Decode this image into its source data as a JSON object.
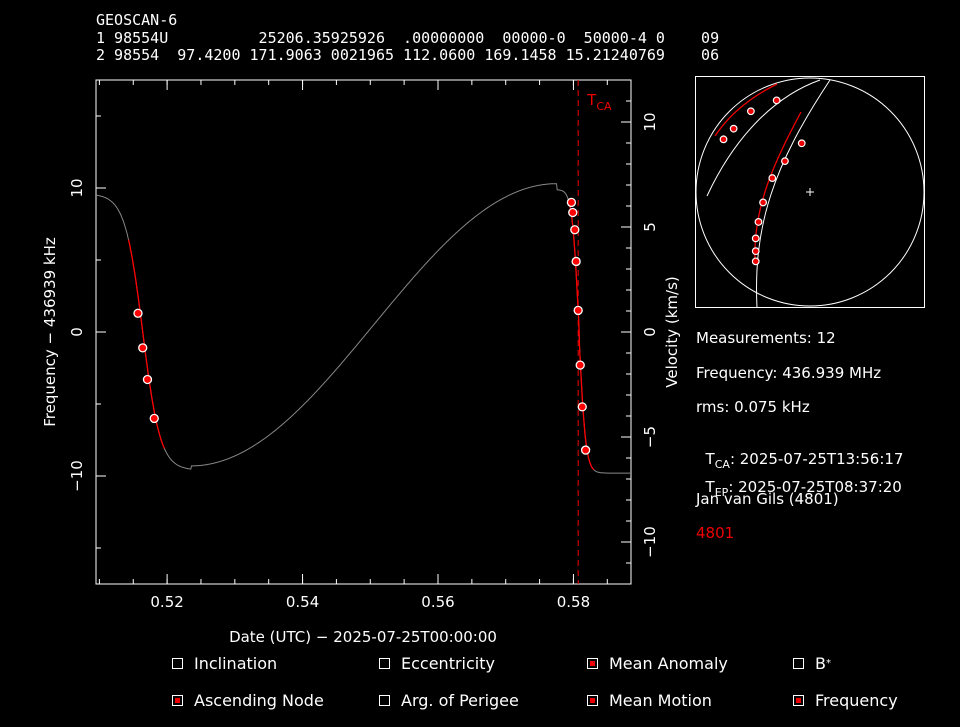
{
  "header": {
    "name": "GEOSCAN-6",
    "line1": "1 98554U          25206.35925926  .00000000  00000-0  50000-4 0    09",
    "line2": "2 98554  97.4200 171.9063 0021965 112.0600 169.1458 15.21240769    06"
  },
  "info": {
    "measurements": "Measurements: 12",
    "frequency": "Frequency: 436.939 MHz",
    "rms": "rms: 0.075 kHz",
    "tca_label": "T",
    "tca_sub": "CA",
    "tca_value": ": 2025-07-25T13:56:17",
    "tep_label": "T",
    "tep_sub": "EP",
    "tep_value": ": 2025-07-25T08:37:20",
    "observer": "Jan van Gils (4801)",
    "station": "4801"
  },
  "checkboxes": [
    {
      "label": "Inclination",
      "checked": false
    },
    {
      "label": "Eccentricity",
      "checked": false
    },
    {
      "label": "Mean Anomaly",
      "checked": true
    },
    {
      "label": "B",
      "sup": "*",
      "checked": false
    },
    {
      "label": "Ascending Node",
      "checked": true
    },
    {
      "label": "Arg. of Perigee",
      "checked": false
    },
    {
      "label": "Mean Motion",
      "checked": true
    },
    {
      "label": "Frequency",
      "checked": true
    }
  ],
  "chart_data": {
    "type": "scatter",
    "xlabel": "Date (UTC) − 2025-07-25T00:00:00",
    "ylabel": "Frequency − 436939 kHz",
    "y2label": "Velocity (km/s)",
    "xlim": [
      0.5095,
      0.5885
    ],
    "ylim": [
      -17.5,
      17.5
    ],
    "y2lim": [
      -12,
      12
    ],
    "xticks": [
      0.52,
      0.54,
      0.56,
      0.58
    ],
    "yticks": [
      -10,
      0,
      10
    ],
    "y2ticks": [
      -10,
      -5,
      0,
      5,
      10
    ],
    "tca_x": 0.5807,
    "tca_marker": "T",
    "tca_marker_sub": "CA",
    "colors": {
      "model": "#888888",
      "fit": "#ff0000",
      "points": "#ff0000"
    },
    "points": [
      {
        "x": 0.5157,
        "y": 1.3
      },
      {
        "x": 0.5164,
        "y": -1.1
      },
      {
        "x": 0.5171,
        "y": -3.3
      },
      {
        "x": 0.5181,
        "y": -6.0
      },
      {
        "x": 0.5797,
        "y": 9.0
      },
      {
        "x": 0.5799,
        "y": 8.3
      },
      {
        "x": 0.5802,
        "y": 7.1
      },
      {
        "x": 0.5804,
        "y": 4.9
      },
      {
        "x": 0.5807,
        "y": 1.5
      },
      {
        "x": 0.581,
        "y": -2.3
      },
      {
        "x": 0.5813,
        "y": -5.2
      },
      {
        "x": 0.5818,
        "y": -8.2
      }
    ],
    "skyplot": {
      "yticks": [
        10,
        5,
        0,
        -5,
        -10
      ],
      "points": [
        {
          "x": 0.124,
          "y": 0.727
        },
        {
          "x": 0.168,
          "y": 0.773
        },
        {
          "x": 0.243,
          "y": 0.848
        },
        {
          "x": 0.355,
          "y": 0.895
        },
        {
          "x": 0.464,
          "y": 0.71
        },
        {
          "x": 0.391,
          "y": 0.633
        },
        {
          "x": 0.336,
          "y": 0.56
        },
        {
          "x": 0.296,
          "y": 0.455
        },
        {
          "x": 0.276,
          "y": 0.371
        },
        {
          "x": 0.264,
          "y": 0.3
        },
        {
          "x": 0.264,
          "y": 0.245
        },
        {
          "x": 0.264,
          "y": 0.201
        }
      ]
    }
  }
}
